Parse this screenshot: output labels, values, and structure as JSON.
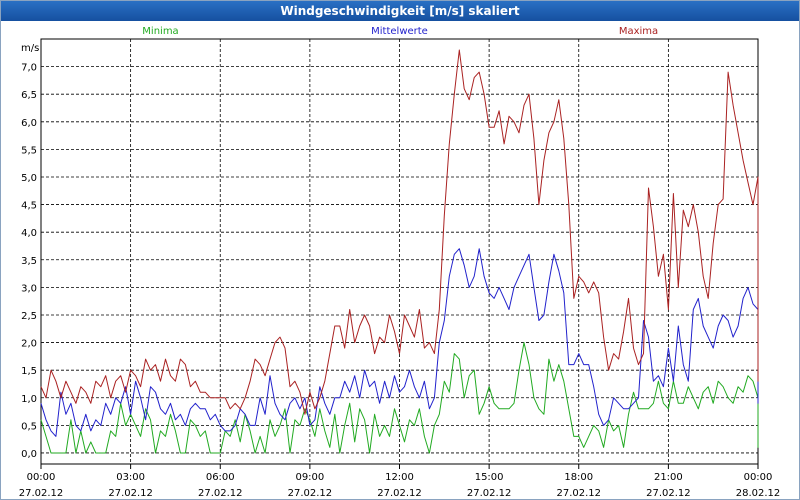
{
  "window": {
    "title": "Windgeschwindigkeit [m/s] skaliert"
  },
  "chart_data": {
    "type": "line",
    "title": "Windgeschwindigkeit [m/s] skaliert",
    "ylabel": "m/s",
    "ylim": [
      -0.2,
      7.5
    ],
    "y_ticks": [
      0.0,
      0.5,
      1.0,
      1.5,
      2.0,
      2.5,
      3.0,
      3.5,
      4.0,
      4.5,
      5.0,
      5.5,
      6.0,
      6.5,
      7.0
    ],
    "y_tick_labels": [
      "0,0",
      "0,5",
      "1,0",
      "1,5",
      "2,0",
      "2,5",
      "3,0",
      "3,5",
      "4,0",
      "4,5",
      "5,0",
      "5,5",
      "6,0",
      "6,5",
      "7,0"
    ],
    "x_ticks": [
      {
        "time": "00:00",
        "date": "27.02.12"
      },
      {
        "time": "03:00",
        "date": "27.02.12"
      },
      {
        "time": "06:00",
        "date": "27.02.12"
      },
      {
        "time": "09:00",
        "date": "27.02.12"
      },
      {
        "time": "12:00",
        "date": "27.02.12"
      },
      {
        "time": "15:00",
        "date": "27.02.12"
      },
      {
        "time": "18:00",
        "date": "27.02.12"
      },
      {
        "time": "21:00",
        "date": "27.02.12"
      },
      {
        "time": "00:00",
        "date": "28.02.12"
      }
    ],
    "x_range_hours": [
      0,
      24
    ],
    "x_step_hours": 0.166667,
    "grid": true,
    "legend": [
      {
        "name": "Minima",
        "color": "#22aa22",
        "position": "left"
      },
      {
        "name": "Mittelwerte",
        "color": "#2222cc",
        "position": "center"
      },
      {
        "name": "Maxima",
        "color": "#aa2222",
        "position": "right"
      }
    ],
    "series": [
      {
        "name": "Minima",
        "color": "#22aa22",
        "values": [
          0.6,
          0.3,
          0,
          0,
          0,
          0,
          0.6,
          0,
          0.4,
          0,
          0.2,
          0,
          0,
          0,
          0.4,
          0.3,
          0.9,
          0.5,
          0.7,
          0.5,
          0.3,
          0.8,
          0.6,
          0,
          0.4,
          0.3,
          0.7,
          0.4,
          0,
          0,
          0.6,
          0.5,
          0.3,
          0.4,
          0,
          0,
          0,
          0.4,
          0.3,
          0.6,
          0.2,
          0.7,
          0.4,
          0,
          0.3,
          0,
          0.6,
          0.3,
          0.5,
          0.8,
          0,
          0.6,
          0.5,
          0.8,
          0.6,
          0.3,
          0.8,
          0.4,
          0.1,
          0.7,
          0,
          0.5,
          0.9,
          0.2,
          0.8,
          0.6,
          0,
          0.7,
          0.3,
          0.5,
          0.3,
          0.8,
          0.5,
          0.2,
          0.6,
          0.5,
          0.8,
          0.3,
          0,
          0.5,
          0.7,
          1.3,
          1.1,
          1.8,
          1.7,
          1.0,
          1.4,
          1.5,
          0.7,
          0.9,
          1.2,
          0.9,
          0.8,
          0.8,
          0.8,
          0.9,
          1.5,
          2.0,
          1.6,
          1.0,
          0.8,
          0.7,
          1.7,
          1.3,
          1.6,
          1.3,
          0.8,
          0.3,
          0.3,
          0.1,
          0.3,
          0.5,
          0.4,
          0.1,
          0.6,
          0.4,
          0.5,
          0.1,
          0.7,
          1.1,
          0.8,
          0.8,
          0.8,
          0.9,
          1.3,
          0.9,
          0.8,
          1.3,
          0.9,
          0.9,
          1.2,
          1.0,
          0.8,
          1.1,
          1.2,
          0.9,
          1.3,
          1.2,
          1.0,
          0.9,
          1.2,
          1.1,
          1.4,
          1.3,
          1.0,
          1.3,
          0.8,
          0.8,
          0.7,
          0.5,
          0.9,
          0.5,
          0.4,
          0.3,
          0.1,
          0.6,
          0.9,
          0.9,
          1.2,
          1.1,
          0.6,
          0.5,
          0.5,
          0.6
        ]
      },
      {
        "name": "Mittelwerte",
        "color": "#2222cc",
        "values": [
          0.9,
          0.6,
          0.4,
          0.3,
          1.1,
          0.7,
          0.9,
          0.5,
          0.4,
          0.7,
          0.4,
          0.6,
          0.5,
          0.9,
          0.7,
          1.0,
          0.9,
          1.2,
          0.7,
          1.3,
          1.0,
          0.6,
          1.2,
          1.1,
          0.8,
          0.7,
          0.9,
          0.6,
          0.7,
          0.5,
          0.8,
          0.9,
          0.8,
          0.8,
          0.6,
          0.7,
          0.5,
          0.4,
          0.4,
          0.5,
          0.8,
          0.7,
          0.5,
          0.5,
          1.0,
          0.7,
          1.4,
          0.9,
          0.7,
          0.6,
          0.9,
          1.0,
          0.8,
          1.0,
          0.5,
          0.6,
          1.2,
          0.9,
          0.7,
          1.0,
          1.0,
          1.3,
          1.1,
          1.4,
          1.0,
          1.5,
          1.2,
          1.3,
          0.9,
          1.3,
          1.0,
          1.4,
          1.1,
          1.2,
          1.5,
          1.2,
          1.0,
          1.3,
          0.8,
          1.0,
          2.0,
          2.4,
          3.2,
          3.6,
          3.7,
          3.4,
          3.0,
          3.2,
          3.7,
          3.2,
          2.9,
          2.8,
          3.0,
          2.8,
          2.6,
          3.0,
          3.2,
          3.4,
          3.6,
          3.0,
          2.4,
          2.5,
          3.1,
          3.6,
          3.3,
          2.9,
          1.6,
          1.6,
          1.8,
          1.6,
          1.6,
          1.2,
          0.7,
          0.5,
          0.6,
          1.0,
          0.9,
          0.8,
          0.8,
          0.9,
          1.0,
          2.4,
          2.1,
          1.3,
          1.4,
          1.2,
          1.9,
          1.3,
          2.3,
          1.6,
          1.3,
          2.6,
          2.8,
          2.3,
          2.1,
          1.9,
          2.3,
          2.5,
          2.4,
          2.1,
          2.3,
          2.8,
          3.0,
          2.7,
          2.6,
          2.5,
          2.1,
          2.4,
          2.3,
          2.1,
          2.2,
          1.9,
          1.6,
          1.0,
          0.9,
          1.5,
          1.8,
          1.9,
          2.0,
          2.2,
          1.4,
          1.1,
          0.9,
          1.0,
          0.9
        ]
      },
      {
        "name": "Maxima",
        "color": "#aa2222",
        "values": [
          1.2,
          1.0,
          1.5,
          1.3,
          1.0,
          1.3,
          1.1,
          0.9,
          1.2,
          1.1,
          0.9,
          1.3,
          1.2,
          1.4,
          1.0,
          1.3,
          1.4,
          1.1,
          1.5,
          1.4,
          1.2,
          1.7,
          1.5,
          1.6,
          1.3,
          1.7,
          1.4,
          1.3,
          1.7,
          1.6,
          1.2,
          1.3,
          1.1,
          1.1,
          1.0,
          1.0,
          1.0,
          1.0,
          0.8,
          0.9,
          0.8,
          1.0,
          1.3,
          1.7,
          1.6,
          1.4,
          1.7,
          2.0,
          2.1,
          1.9,
          1.2,
          1.3,
          1.1,
          0.7,
          1.1,
          0.8,
          1.0,
          1.3,
          1.8,
          2.3,
          2.3,
          1.9,
          2.6,
          2.0,
          2.3,
          2.5,
          2.3,
          1.8,
          2.1,
          2.0,
          2.5,
          2.2,
          1.8,
          2.5,
          2.3,
          2.1,
          2.6,
          1.9,
          2.0,
          1.8,
          2.6,
          4.3,
          5.6,
          6.5,
          7.3,
          6.6,
          6.4,
          6.8,
          6.9,
          6.5,
          5.9,
          5.9,
          6.2,
          5.6,
          6.1,
          6.0,
          5.8,
          6.3,
          6.5,
          5.7,
          4.5,
          5.3,
          5.8,
          6.0,
          6.4,
          5.7,
          4.5,
          2.8,
          3.2,
          3.1,
          2.9,
          3.1,
          2.9,
          2.1,
          1.5,
          1.8,
          1.7,
          2.2,
          2.8,
          1.9,
          1.6,
          1.8,
          4.8,
          4.1,
          3.2,
          3.6,
          2.6,
          4.7,
          3.0,
          4.4,
          4.1,
          4.5,
          4.0,
          3.2,
          2.8,
          3.8,
          4.5,
          4.6,
          6.9,
          6.3,
          5.8,
          5.3,
          4.9,
          4.5,
          5.0,
          4.6,
          4.2,
          4.4,
          4.0,
          3.6,
          3.0,
          2.8,
          3.2,
          3.7,
          4.1,
          4.4,
          3.7,
          2.4,
          1.9,
          1.6,
          1.4,
          1.3,
          1.9,
          2.0
        ]
      }
    ]
  }
}
